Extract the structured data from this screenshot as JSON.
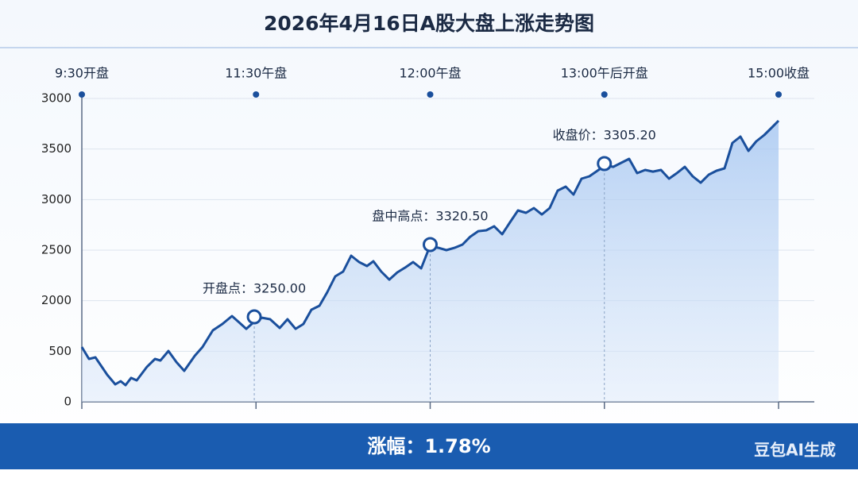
{
  "chart_data": {
    "type": "line",
    "title": "2026年4月16日A股大盘上涨走势图",
    "footer_text": "涨幅：1.78%",
    "watermark": "豆包AI生成",
    "color": "#1a4f9c",
    "grid": true,
    "xlim": [
      0,
      4
    ],
    "xticks": [
      {
        "value": 0,
        "label": "9:30开盘"
      },
      {
        "value": 1,
        "label": "11:30午盘"
      },
      {
        "value": 2,
        "label": "12:00午盘"
      },
      {
        "value": 3,
        "label": "13:00午后开盘"
      },
      {
        "value": 4,
        "label": "15:00收盘"
      }
    ],
    "ylim": [
      0,
      3000
    ],
    "yticks": [
      0,
      500,
      {
        "value": 1000,
        "label": "2000"
      },
      {
        "value": 1500,
        "label": "2500"
      },
      {
        "value": 2000,
        "label": "3000"
      },
      {
        "value": 2500,
        "label": "3500"
      },
      3000
    ],
    "x": [
      0,
      0.041,
      0.078,
      0.146,
      0.192,
      0.223,
      0.251,
      0.283,
      0.315,
      0.374,
      0.42,
      0.451,
      0.497,
      0.543,
      0.588,
      0.648,
      0.693,
      0.752,
      0.807,
      0.862,
      0.898,
      0.944,
      0.99,
      1.035,
      1.081,
      1.136,
      1.181,
      1.227,
      1.272,
      1.318,
      1.364,
      1.409,
      1.455,
      1.5,
      1.546,
      1.592,
      1.637,
      1.674,
      1.719,
      1.765,
      1.811,
      1.856,
      1.902,
      1.948,
      1.998,
      2.048,
      2.093,
      2.139,
      2.185,
      2.23,
      2.276,
      2.322,
      2.367,
      2.413,
      2.458,
      2.504,
      2.55,
      2.595,
      2.641,
      2.686,
      2.732,
      2.778,
      2.823,
      2.869,
      2.914,
      2.96,
      3.005,
      3.051,
      3.097,
      3.142,
      3.188,
      3.234,
      3.279,
      3.325,
      3.371,
      3.416,
      3.462,
      3.507,
      3.553,
      3.599,
      3.644,
      3.69,
      3.735,
      3.781,
      3.827,
      3.872,
      3.918,
      3.964,
      4
    ],
    "values": [
      542,
      424,
      440,
      267,
      173,
      204,
      165,
      236,
      212,
      346,
      424,
      408,
      503,
      393,
      306,
      455,
      542,
      707,
      770,
      848,
      793,
      722,
      793,
      832,
      817,
      730,
      817,
      722,
      770,
      911,
      950,
      1084,
      1241,
      1288,
      1445,
      1382,
      1343,
      1390,
      1288,
      1209,
      1280,
      1327,
      1382,
      1319,
      1539,
      1523,
      1500,
      1523,
      1555,
      1633,
      1688,
      1696,
      1736,
      1657,
      1775,
      1893,
      1869,
      1916,
      1853,
      1916,
      2089,
      2128,
      2050,
      2207,
      2230,
      2285,
      2340,
      2324,
      2364,
      2403,
      2262,
      2293,
      2277,
      2293,
      2207,
      2262,
      2324,
      2230,
      2167,
      2246,
      2285,
      2309,
      2560,
      2623,
      2482,
      2576,
      2639,
      2717,
      2780
    ],
    "annotations": [
      {
        "text": "开盘点：3250.00",
        "x": 0.99,
        "y": 840
      },
      {
        "text": "盘中高点：3320.50",
        "x": 2.0,
        "y": 1555
      },
      {
        "text": "收盘价：3305.20",
        "x": 3.0,
        "y": 2356
      }
    ]
  }
}
